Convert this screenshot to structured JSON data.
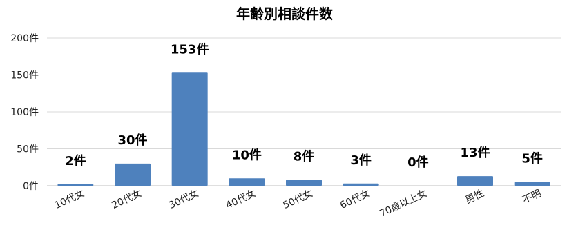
{
  "chart_data": {
    "type": "bar",
    "title": "年齢別相談件数",
    "xlabel": "",
    "ylabel": "",
    "categories": [
      "10代女",
      "20代女",
      "30代女",
      "40代女",
      "50代女",
      "60代女",
      "70歳以上女",
      "男性",
      "不明"
    ],
    "values": [
      2,
      30,
      153,
      10,
      8,
      3,
      0,
      13,
      5
    ],
    "data_labels": [
      "2件",
      "30件",
      "153件",
      "10件",
      "8件",
      "3件",
      "0件",
      "13件",
      "5件"
    ],
    "ylim": [
      0,
      200
    ],
    "yticks": [
      0,
      50,
      100,
      150,
      200
    ],
    "ytick_labels": [
      "0件",
      "50件",
      "100件",
      "150件",
      "200件"
    ],
    "grid": true,
    "legend": "none",
    "bar_color": "#4e81bd"
  }
}
